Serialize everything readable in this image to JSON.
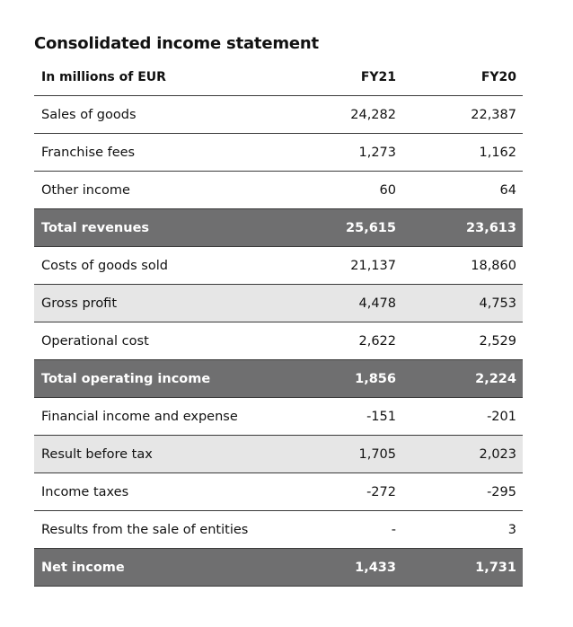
{
  "title": "Consolidated income statement",
  "header": {
    "label": "In millions of EUR",
    "col1": "FY21",
    "col2": "FY20"
  },
  "rows": [
    {
      "label": "Sales of goods",
      "fy21": "24,282",
      "fy20": "22,387",
      "style": "plain"
    },
    {
      "label": "Franchise fees",
      "fy21": "1,273",
      "fy20": "1,162",
      "style": "plain"
    },
    {
      "label": "Other income",
      "fy21": "60",
      "fy20": "64",
      "style": "plain"
    },
    {
      "label": "Total revenues",
      "fy21": "25,615",
      "fy20": "23,613",
      "style": "dark"
    },
    {
      "label": "Costs of goods sold",
      "fy21": "21,137",
      "fy20": "18,860",
      "style": "plain"
    },
    {
      "label": "Gross profit",
      "fy21": "4,478",
      "fy20": "4,753",
      "style": "light"
    },
    {
      "label": "Operational cost",
      "fy21": "2,622",
      "fy20": "2,529",
      "style": "plain"
    },
    {
      "label": "Total operating income",
      "fy21": "1,856",
      "fy20": "2,224",
      "style": "dark"
    },
    {
      "label": "Financial income and expense",
      "fy21": "-151",
      "fy20": "-201",
      "style": "plain"
    },
    {
      "label": "Result before tax",
      "fy21": "1,705",
      "fy20": "2,023",
      "style": "light"
    },
    {
      "label": "Income taxes",
      "fy21": "-272",
      "fy20": "-295",
      "style": "plain"
    },
    {
      "label": "Results from the sale of entities",
      "fy21": "-",
      "fy20": "3",
      "style": "plain"
    },
    {
      "label": "Net income",
      "fy21": "1,433",
      "fy20": "1,731",
      "style": "dark"
    }
  ],
  "colors": {
    "dark_row": "#6f6f70",
    "light_row": "#e6e6e6",
    "rule": "#3a3a3a"
  }
}
